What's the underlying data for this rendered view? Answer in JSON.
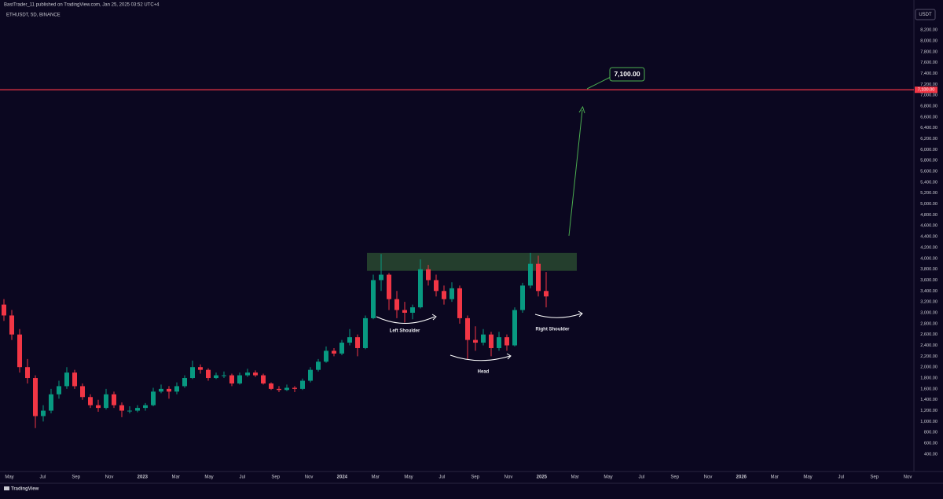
{
  "header": {
    "publisher": "BastTrader_11 published on TradingView.com, Jan 25, 2025 03:52 UTC+4",
    "symbol": "ETHUSDT, 5D, BINANCE",
    "currency_button": "USDT",
    "footer_logo": "TradingView"
  },
  "chart_data": {
    "type": "candlestick",
    "ohlc": [
      [
        3150,
        3250,
        2850,
        2950
      ],
      [
        2950,
        3050,
        2500,
        2600
      ],
      [
        2600,
        2700,
        1900,
        2000
      ],
      [
        2000,
        2150,
        1700,
        1800
      ],
      [
        1800,
        1850,
        880,
        1100
      ],
      [
        1100,
        1300,
        1000,
        1200
      ],
      [
        1200,
        1600,
        1150,
        1500
      ],
      [
        1500,
        1750,
        1420,
        1650
      ],
      [
        1650,
        2000,
        1600,
        1900
      ],
      [
        1900,
        1950,
        1600,
        1650
      ],
      [
        1650,
        1700,
        1400,
        1450
      ],
      [
        1450,
        1500,
        1250,
        1300
      ],
      [
        1300,
        1400,
        1180,
        1250
      ],
      [
        1250,
        1600,
        1220,
        1500
      ],
      [
        1500,
        1550,
        1250,
        1300
      ],
      [
        1300,
        1350,
        1080,
        1200
      ],
      [
        1200,
        1280,
        1150,
        1200
      ],
      [
        1200,
        1300,
        1170,
        1250
      ],
      [
        1250,
        1340,
        1200,
        1300
      ],
      [
        1300,
        1620,
        1280,
        1550
      ],
      [
        1550,
        1680,
        1520,
        1600
      ],
      [
        1600,
        1650,
        1420,
        1550
      ],
      [
        1550,
        1720,
        1500,
        1650
      ],
      [
        1650,
        1850,
        1620,
        1800
      ],
      [
        1800,
        2120,
        1780,
        2000
      ],
      [
        2000,
        2050,
        1880,
        1950
      ],
      [
        1950,
        1980,
        1750,
        1800
      ],
      [
        1800,
        1900,
        1780,
        1850
      ],
      [
        1850,
        1920,
        1800,
        1850
      ],
      [
        1850,
        1880,
        1650,
        1700
      ],
      [
        1700,
        1900,
        1680,
        1850
      ],
      [
        1850,
        1970,
        1820,
        1900
      ],
      [
        1900,
        1940,
        1820,
        1850
      ],
      [
        1850,
        1880,
        1680,
        1700
      ],
      [
        1700,
        1720,
        1580,
        1600
      ],
      [
        1600,
        1650,
        1540,
        1580
      ],
      [
        1580,
        1680,
        1560,
        1620
      ],
      [
        1620,
        1650,
        1540,
        1600
      ],
      [
        1600,
        1790,
        1580,
        1750
      ],
      [
        1750,
        2000,
        1720,
        1950
      ],
      [
        1950,
        2150,
        1920,
        2100
      ],
      [
        2100,
        2380,
        2080,
        2300
      ],
      [
        2300,
        2350,
        2200,
        2250
      ],
      [
        2250,
        2500,
        2220,
        2450
      ],
      [
        2450,
        2700,
        2400,
        2550
      ],
      [
        2550,
        2600,
        2200,
        2350
      ],
      [
        2350,
        2950,
        2330,
        2900
      ],
      [
        2900,
        3700,
        2880,
        3600
      ],
      [
        3600,
        4080,
        3400,
        3700
      ],
      [
        3700,
        3730,
        3050,
        3250
      ],
      [
        3250,
        3400,
        2900,
        3050
      ],
      [
        3050,
        3200,
        2820,
        3000
      ],
      [
        3000,
        3150,
        2880,
        3100
      ],
      [
        3100,
        3980,
        3080,
        3800
      ],
      [
        3800,
        3880,
        3500,
        3600
      ],
      [
        3600,
        3700,
        3300,
        3400
      ],
      [
        3400,
        3500,
        3150,
        3250
      ],
      [
        3250,
        3560,
        3200,
        3450
      ],
      [
        3450,
        3500,
        2800,
        2900
      ],
      [
        2900,
        2950,
        2150,
        2500
      ],
      [
        2500,
        2750,
        2300,
        2450
      ],
      [
        2450,
        2700,
        2400,
        2600
      ],
      [
        2600,
        2650,
        2200,
        2350
      ],
      [
        2350,
        2650,
        2300,
        2550
      ],
      [
        2550,
        2600,
        2300,
        2400
      ],
      [
        2400,
        3100,
        2380,
        3050
      ],
      [
        3050,
        3550,
        3000,
        3500
      ],
      [
        3500,
        4100,
        3450,
        3900
      ],
      [
        3900,
        4050,
        3300,
        3400
      ],
      [
        3400,
        3750,
        3100,
        3300
      ]
    ],
    "up_color": "#089981",
    "down_color": "#f23645",
    "ylim": [
      110,
      8635
    ],
    "yticks": [
      {
        "value": 400,
        "label": "400.00"
      },
      {
        "value": 600,
        "label": "600.00"
      },
      {
        "value": 800,
        "label": "800.00"
      },
      {
        "value": 1000,
        "label": "1,000.00"
      },
      {
        "value": 1200,
        "label": "1,200.00"
      },
      {
        "value": 1400,
        "label": "1,400.00"
      },
      {
        "value": 1600,
        "label": "1,600.00"
      },
      {
        "value": 1800,
        "label": "1,800.00"
      },
      {
        "value": 2000,
        "label": "2,000.00"
      },
      {
        "value": 2200,
        "label": "2,200.00"
      },
      {
        "value": 2400,
        "label": "2,400.00"
      },
      {
        "value": 2600,
        "label": "2,600.00"
      },
      {
        "value": 2800,
        "label": "2,800.00"
      },
      {
        "value": 3000,
        "label": "3,000.00"
      },
      {
        "value": 3200,
        "label": "3,200.00"
      },
      {
        "value": 3400,
        "label": "3,400.00"
      },
      {
        "value": 3600,
        "label": "3,600.00"
      },
      {
        "value": 3800,
        "label": "3,800.00"
      },
      {
        "value": 4000,
        "label": "4,000.00"
      },
      {
        "value": 4200,
        "label": "4,200.00"
      },
      {
        "value": 4400,
        "label": "4,400.00"
      },
      {
        "value": 4600,
        "label": "4,600.00"
      },
      {
        "value": 4800,
        "label": "4,800.00"
      },
      {
        "value": 5000,
        "label": "5,000.00"
      },
      {
        "value": 5200,
        "label": "5,200.00"
      },
      {
        "value": 5400,
        "label": "5,400.00"
      },
      {
        "value": 5600,
        "label": "5,600.00"
      },
      {
        "value": 5800,
        "label": "5,800.00"
      },
      {
        "value": 6000,
        "label": "6,000.00"
      },
      {
        "value": 6200,
        "label": "6,200.00"
      },
      {
        "value": 6400,
        "label": "6,400.00"
      },
      {
        "value": 6600,
        "label": "6,600.00"
      },
      {
        "value": 6800,
        "label": "6,800.00"
      },
      {
        "value": 7000,
        "label": "7,000.00"
      },
      {
        "value": 7200,
        "label": "7,200.00"
      },
      {
        "value": 7400,
        "label": "7,400.00"
      },
      {
        "value": 7600,
        "label": "7,600.00"
      },
      {
        "value": 7800,
        "label": "7,800.00"
      },
      {
        "value": 8000,
        "label": "8,000.00"
      },
      {
        "value": 8200,
        "label": "8,200.00"
      }
    ],
    "xlim": [
      "2022-05",
      "2026-11"
    ],
    "xticks": [
      {
        "value": "2022-05",
        "label": "May"
      },
      {
        "value": "2022-07",
        "label": "Jul"
      },
      {
        "value": "2022-09",
        "label": "Sep"
      },
      {
        "value": "2022-11",
        "label": "Nov"
      },
      {
        "value": "2023-01",
        "label": "2023"
      },
      {
        "value": "2023-03",
        "label": "Mar"
      },
      {
        "value": "2023-05",
        "label": "May"
      },
      {
        "value": "2023-07",
        "label": "Jul"
      },
      {
        "value": "2023-09",
        "label": "Sep"
      },
      {
        "value": "2023-11",
        "label": "Nov"
      },
      {
        "value": "2024-01",
        "label": "2024"
      },
      {
        "value": "2024-03",
        "label": "Mar"
      },
      {
        "value": "2024-05",
        "label": "May"
      },
      {
        "value": "2024-07",
        "label": "Jul"
      },
      {
        "value": "2024-09",
        "label": "Sep"
      },
      {
        "value": "2024-11",
        "label": "Nov"
      },
      {
        "value": "2025-01",
        "label": "2025"
      },
      {
        "value": "2025-03",
        "label": "Mar"
      },
      {
        "value": "2025-05",
        "label": "May"
      },
      {
        "value": "2025-07",
        "label": "Jul"
      },
      {
        "value": "2025-09",
        "label": "Sep"
      },
      {
        "value": "2025-11",
        "label": "Nov"
      },
      {
        "value": "2026-01",
        "label": "2026"
      },
      {
        "value": "2026-03",
        "label": "Mar"
      },
      {
        "value": "2026-05",
        "label": "May"
      },
      {
        "value": "2026-07",
        "label": "Jul"
      },
      {
        "value": "2026-09",
        "label": "Sep"
      },
      {
        "value": "2026-11",
        "label": "Nov"
      }
    ],
    "zone": [
      3770,
      4100
    ],
    "zone_color": "#27452f",
    "target": {
      "value": 7100,
      "label": "7,100.00"
    },
    "target_color": "#f23645",
    "annotations": [
      "Left Shoulder",
      "Head",
      "Right Shoulder"
    ]
  }
}
